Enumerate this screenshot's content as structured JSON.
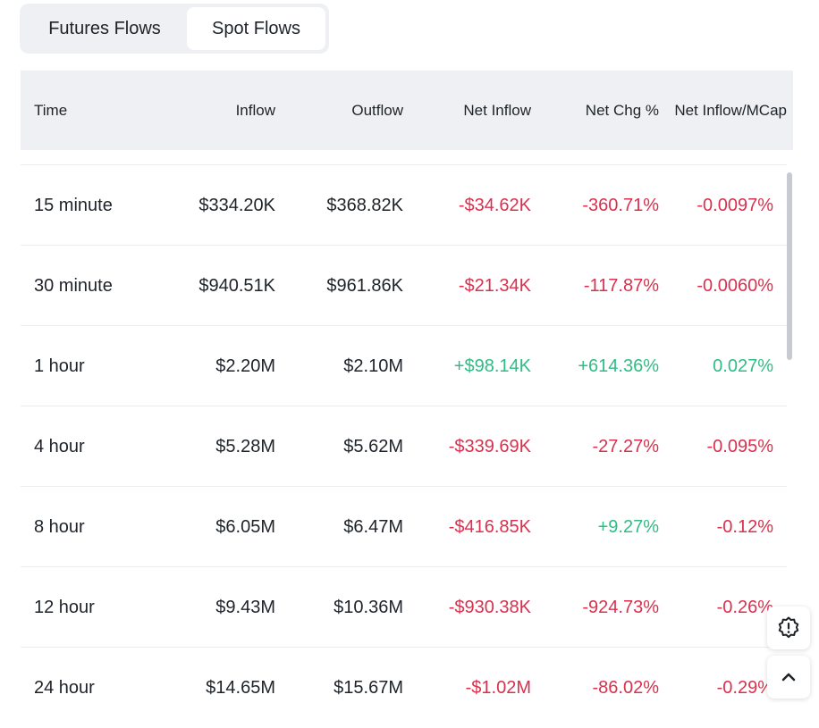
{
  "tabs": {
    "futures": "Futures Flows",
    "spot": "Spot Flows",
    "active": "spot"
  },
  "table": {
    "headers": {
      "time": "Time",
      "inflow": "Inflow",
      "outflow": "Outflow",
      "net_inflow": "Net Inflow",
      "net_chg": "Net Chg %",
      "net_mcap": "Net Inflow/MCap"
    },
    "rows": [
      {
        "time": "15 minute",
        "inflow": "$334.20K",
        "outflow": "$368.82K",
        "net_inflow": "-$34.62K",
        "net_chg": "-360.71%",
        "net_mcap": "-0.0097%"
      },
      {
        "time": "30 minute",
        "inflow": "$940.51K",
        "outflow": "$961.86K",
        "net_inflow": "-$21.34K",
        "net_chg": "-117.87%",
        "net_mcap": "-0.0060%"
      },
      {
        "time": "1 hour",
        "inflow": "$2.20M",
        "outflow": "$2.10M",
        "net_inflow": "+$98.14K",
        "net_chg": "+614.36%",
        "net_mcap": "0.027%"
      },
      {
        "time": "4 hour",
        "inflow": "$5.28M",
        "outflow": "$5.62M",
        "net_inflow": "-$339.69K",
        "net_chg": "-27.27%",
        "net_mcap": "-0.095%"
      },
      {
        "time": "8 hour",
        "inflow": "$6.05M",
        "outflow": "$6.47M",
        "net_inflow": "-$416.85K",
        "net_chg": "+9.27%",
        "net_mcap": "-0.12%"
      },
      {
        "time": "12 hour",
        "inflow": "$9.43M",
        "outflow": "$10.36M",
        "net_inflow": "-$930.38K",
        "net_chg": "-924.73%",
        "net_mcap": "-0.26%"
      },
      {
        "time": "24 hour",
        "inflow": "$14.65M",
        "outflow": "$15.67M",
        "net_inflow": "-$1.02M",
        "net_chg": "-86.02%",
        "net_mcap": "-0.29%"
      }
    ]
  },
  "colors": {
    "negative": "#d9304e",
    "positive": "#2ebd85",
    "header_bg": "#eef0f3"
  },
  "icons": {
    "feedback": "settings-badge-exclamation-icon",
    "scroll_top": "chevron-up-icon"
  }
}
